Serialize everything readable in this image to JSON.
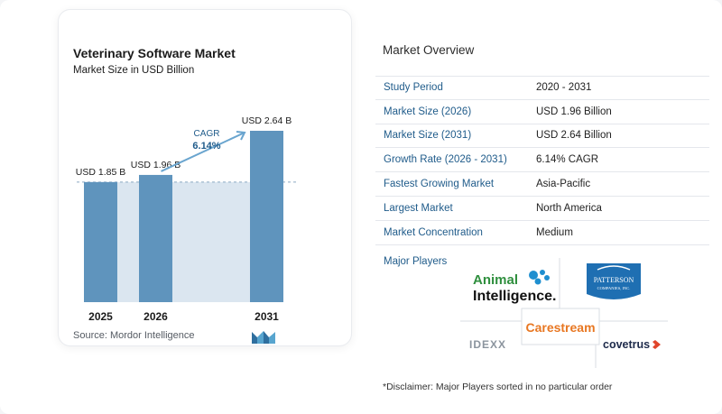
{
  "chart_data": {
    "type": "bar",
    "title": "Veterinary Software Market",
    "subtitle": "Market Size in USD Billion",
    "categories": [
      "2025",
      "2026",
      "2031"
    ],
    "values": [
      1.85,
      1.96,
      2.64
    ],
    "data_labels": [
      "USD 1.85 B",
      "USD 1.96 B",
      "USD 2.64 B"
    ],
    "ylim": [
      0,
      2.64
    ],
    "grid": false,
    "annotation": {
      "label": "CAGR",
      "value": "6.14%"
    },
    "colors": {
      "bar": "#5f94bd",
      "shade": "#dbe6f0",
      "accent": "#1f5b8a",
      "arrow": "#6aa5cf"
    }
  },
  "source": "Source:  Mordor Intelligence",
  "overview": {
    "title": "Market Overview",
    "rows": [
      {
        "label": "Study Period",
        "value": "2020 - 2031"
      },
      {
        "label": "Market Size (2026)",
        "value": "USD 1.96 Billion"
      },
      {
        "label": "Market Size (2031)",
        "value": "USD 2.64 Billion"
      },
      {
        "label": "Growth Rate (2026 - 2031)",
        "value": "6.14% CAGR"
      },
      {
        "label": "Fastest Growing Market",
        "value": "Asia-Pacific"
      },
      {
        "label": "Largest Market",
        "value": "North America"
      },
      {
        "label": "Market Concentration",
        "value": "Medium"
      }
    ]
  },
  "players": {
    "title": "Major Players",
    "logos": {
      "animal_line1": "Animal",
      "animal_line2": "Intelligence.",
      "patterson_line1": "PATTERSON",
      "patterson_line2": "COMPANIES, INC.",
      "idexx": "IDEXX",
      "carestream": "Carestream",
      "covetrus": "covetrus"
    }
  },
  "disclaimer": "*Disclaimer: Major Players sorted in no particular order"
}
